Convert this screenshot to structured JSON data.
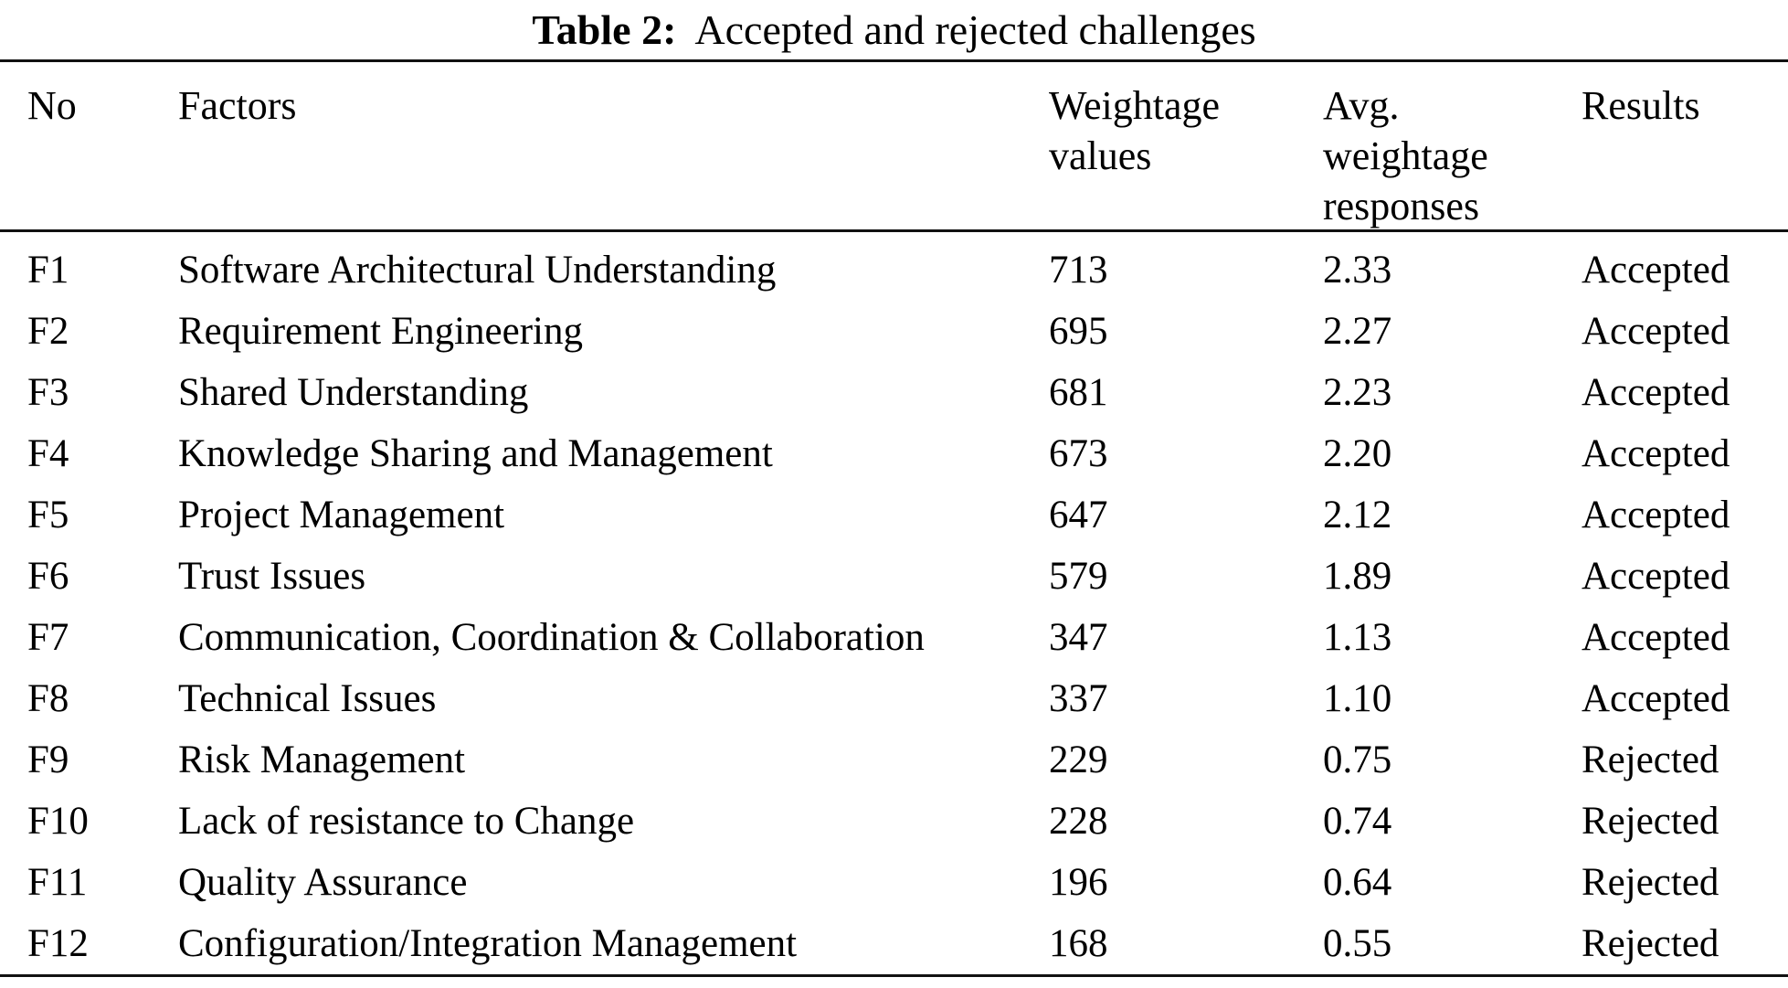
{
  "title": {
    "prefix": "Table 2:",
    "text": "Accepted and rejected challenges"
  },
  "colors": {
    "text": "#000000",
    "background": "#ffffff",
    "rule": "#111111"
  },
  "table": {
    "headers": {
      "no": "No",
      "factors": "Factors",
      "weightage": "Weightage\nvalues",
      "avg": "Avg.\nweightage\nresponses",
      "results": "Results"
    },
    "rows": [
      {
        "no": "F1",
        "factor": "Software Architectural Understanding",
        "weightage": "713",
        "avg": "2.33",
        "result": "Accepted"
      },
      {
        "no": "F2",
        "factor": "Requirement Engineering",
        "weightage": "695",
        "avg": "2.27",
        "result": "Accepted"
      },
      {
        "no": "F3",
        "factor": "Shared Understanding",
        "weightage": "681",
        "avg": "2.23",
        "result": "Accepted"
      },
      {
        "no": "F4",
        "factor": "Knowledge Sharing and Management",
        "weightage": "673",
        "avg": "2.20",
        "result": "Accepted"
      },
      {
        "no": "F5",
        "factor": "Project Management",
        "weightage": "647",
        "avg": "2.12",
        "result": "Accepted"
      },
      {
        "no": "F6",
        "factor": "Trust Issues",
        "weightage": "579",
        "avg": "1.89",
        "result": "Accepted"
      },
      {
        "no": "F7",
        "factor": "Communication, Coordination & Collaboration",
        "weightage": "347",
        "avg": "1.13",
        "result": "Accepted"
      },
      {
        "no": "F8",
        "factor": "Technical Issues",
        "weightage": "337",
        "avg": "1.10",
        "result": "Accepted"
      },
      {
        "no": "F9",
        "factor": "Risk Management",
        "weightage": "229",
        "avg": "0.75",
        "result": "Rejected"
      },
      {
        "no": "F10",
        "factor": "Lack of resistance to Change",
        "weightage": "228",
        "avg": "0.74",
        "result": "Rejected"
      },
      {
        "no": "F11",
        "factor": "Quality Assurance",
        "weightage": "196",
        "avg": "0.64",
        "result": "Rejected"
      },
      {
        "no": "F12",
        "factor": "Configuration/Integration Management",
        "weightage": "168",
        "avg": "0.55",
        "result": "Rejected"
      }
    ]
  }
}
